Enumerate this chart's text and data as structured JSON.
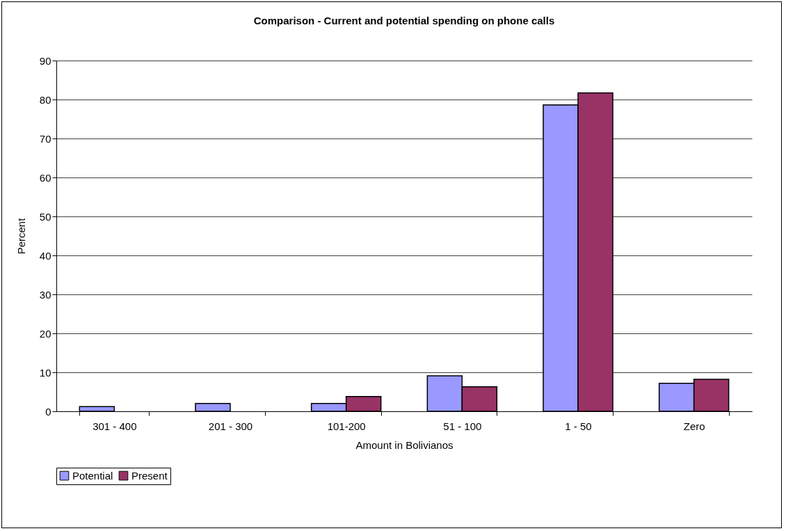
{
  "chart_data": {
    "type": "bar",
    "title": "Comparison - Current and potential spending on phone calls",
    "xlabel": "Amount in Bolivianos",
    "ylabel": "Percent",
    "categories": [
      "301 - 400",
      "201 - 300",
      "101-200",
      "51 - 100",
      "1 - 50",
      "Zero"
    ],
    "series": [
      {
        "name": "Potential",
        "color": "#9999ff",
        "values": [
          1.2,
          2.0,
          2.0,
          9.1,
          78.6,
          7.2
        ]
      },
      {
        "name": "Present",
        "color": "#993366",
        "values": [
          null,
          null,
          3.8,
          6.3,
          81.7,
          8.2
        ]
      }
    ],
    "ylim": [
      0,
      90
    ],
    "yticks": [
      0,
      10,
      20,
      30,
      40,
      50,
      60,
      70,
      80,
      90
    ],
    "grid": "y",
    "legend": "bottom"
  }
}
